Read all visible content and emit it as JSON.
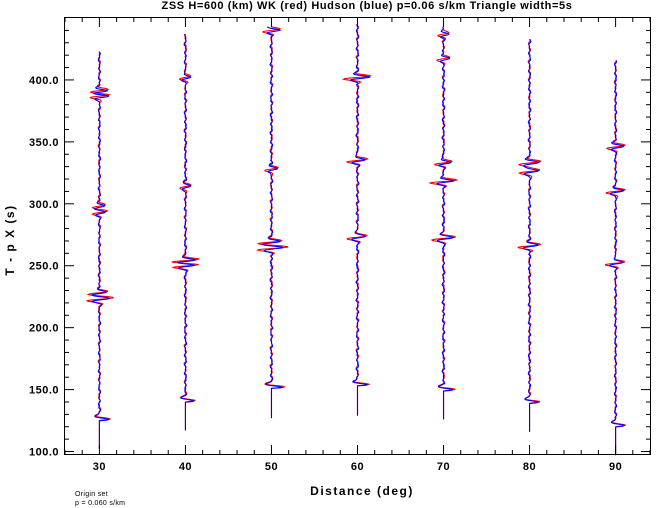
{
  "chart_data": {
    "type": "line",
    "title": "ZSS H=600 (km) WK (red) Hudson (blue) p=0.06 s/km Triangle width=5s",
    "xlabel": "Distance (deg)",
    "ylabel": "T - p X (s)",
    "xlim": [
      26,
      94
    ],
    "ylim": [
      98,
      450
    ],
    "xticks": [
      30,
      40,
      50,
      60,
      70,
      80,
      90
    ],
    "xtick_labels": [
      "30",
      "40",
      "50",
      "60",
      "70",
      "80",
      "90"
    ],
    "yticks": [
      100,
      150,
      200,
      250,
      300,
      350,
      400
    ],
    "ytick_labels": [
      "100.0",
      "150.0",
      "200.0",
      "250.0",
      "300.0",
      "350.0",
      "400.0"
    ],
    "grid": false,
    "annotations": [
      "Origin set",
      "p = 0.060 s/km"
    ],
    "series": [
      {
        "name": "WK",
        "color": "#ff0000"
      },
      {
        "name": "Hudson",
        "color": "#0000ff"
      }
    ],
    "traces": [
      {
        "distance": 30,
        "start": 102,
        "end": 423,
        "onset": 125,
        "amp": 2.2,
        "bursts": [
          [
            125,
            3.8
          ],
          [
            223,
            3.2
          ],
          [
            228,
            2.4
          ],
          [
            293,
            1.8
          ],
          [
            298,
            2.0
          ],
          [
            387,
            3.5
          ],
          [
            391,
            2.6
          ]
        ]
      },
      {
        "distance": 40,
        "start": 117,
        "end": 437,
        "onset": 140,
        "amp": 2.4,
        "bursts": [
          [
            140,
            3.5
          ],
          [
            250,
            3.0
          ],
          [
            254,
            3.6
          ],
          [
            314,
            1.6
          ],
          [
            402,
            1.6
          ]
        ]
      },
      {
        "distance": 50,
        "start": 127,
        "end": 443,
        "onset": 151,
        "amp": 2.6,
        "bursts": [
          [
            151,
            3.8
          ],
          [
            264,
            3.4
          ],
          [
            269,
            2.2
          ],
          [
            328,
            1.8
          ],
          [
            440,
            2.4
          ]
        ]
      },
      {
        "distance": 60,
        "start": 129,
        "end": 445,
        "onset": 153,
        "amp": 2.6,
        "bursts": [
          [
            153,
            3.6
          ],
          [
            273,
            2.2
          ],
          [
            335,
            2.2
          ],
          [
            402,
            3.4
          ]
        ]
      },
      {
        "distance": 70,
        "start": 126,
        "end": 443,
        "onset": 149,
        "amp": 2.6,
        "bursts": [
          [
            149,
            3.8
          ],
          [
            272,
            2.6
          ],
          [
            318,
            3.0
          ],
          [
            333,
            2.0
          ],
          [
            417,
            1.6
          ],
          [
            437,
            1.6
          ]
        ]
      },
      {
        "distance": 80,
        "start": 116,
        "end": 433,
        "onset": 139,
        "amp": 2.4,
        "bursts": [
          [
            139,
            3.4
          ],
          [
            266,
            3.0
          ],
          [
            326,
            2.4
          ],
          [
            333,
            2.8
          ]
        ]
      },
      {
        "distance": 90,
        "start": 97,
        "end": 416,
        "onset": 120,
        "amp": 2.2,
        "bursts": [
          [
            120,
            3.8
          ],
          [
            252,
            2.6
          ],
          [
            310,
            2.4
          ],
          [
            346,
            2.6
          ]
        ]
      }
    ]
  }
}
